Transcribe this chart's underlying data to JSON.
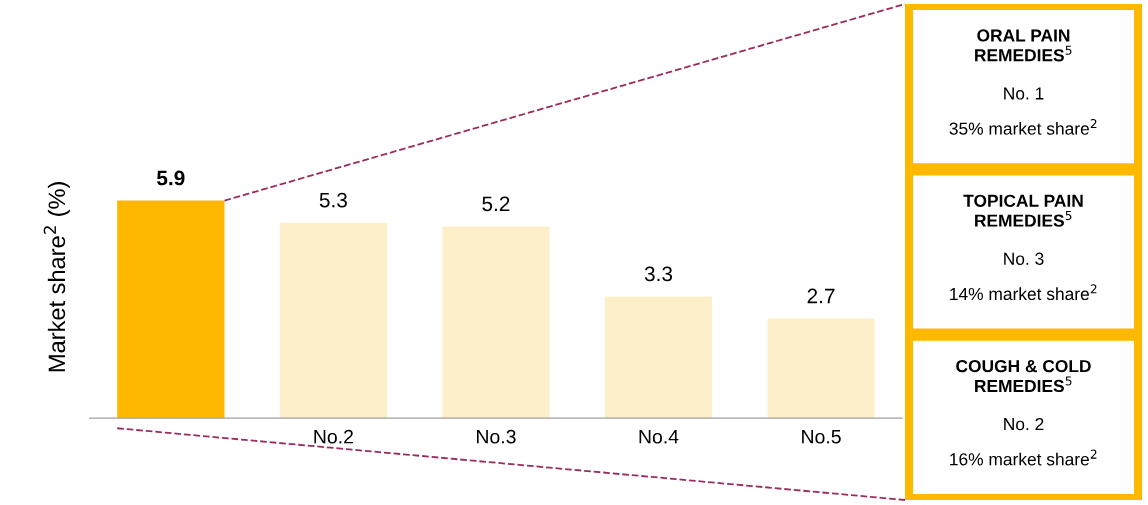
{
  "chart_data": {
    "type": "bar",
    "ylabel": "Market share$^{2}$ (%)",
    "categories": [
      null,
      "No.2",
      "No.3",
      "No.4",
      "No.5"
    ],
    "values": [
      5.9,
      5.3,
      5.2,
      3.3,
      2.7
    ],
    "colors": [
      "#ffb800",
      "#fdefca",
      "#fdefca",
      "#fdefca",
      "#fdefca"
    ],
    "data_labels": true,
    "grid": false,
    "annotations": [
      "ORAL PAIN\nREMEDIES$^{5}$",
      "No. 1",
      "35% market share$^{2}$",
      "TOPICAL PAIN\nREMEDIES$^{5}$",
      "No. 3",
      "14% market share$^{2}$",
      "COUGH & COLD\nREMEDIES$^{5}$",
      "No. 2",
      "16% market share$^{2}$"
    ]
  }
}
